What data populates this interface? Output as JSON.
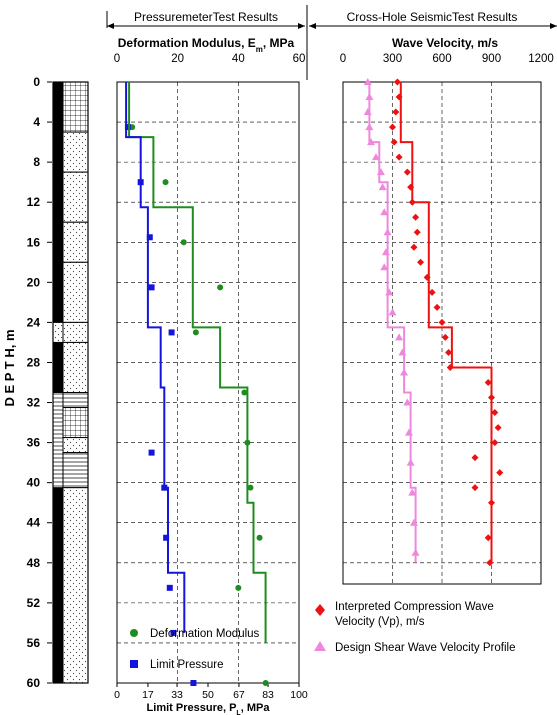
{
  "header": {
    "pressuremeter_banner": "PressuremeterTest Results",
    "seismic_banner": "Cross-Hole SeismicTest Results"
  },
  "chart_data": [
    {
      "type": "scatter",
      "panel": "pressuremeter",
      "title_top": "Deformation Modulus, E",
      "title_top_sub": "m",
      "title_top_unit": ", MPa",
      "title_bottom": "Limit Pressure, P",
      "title_bottom_sub": "L",
      "title_bottom_unit": ", MPa",
      "ylabel": "D E P T H,   m",
      "top_axis": {
        "ticks": [
          "0",
          "20",
          "40",
          "60"
        ],
        "range": [
          0,
          60
        ]
      },
      "bottom_axis": {
        "ticks": [
          "0",
          "17",
          "33",
          "50",
          "67",
          "83",
          "100"
        ],
        "range": [
          0,
          100
        ]
      },
      "y_axis": {
        "ticks": [
          "0",
          "4",
          "8",
          "12",
          "16",
          "20",
          "24",
          "28",
          "32",
          "36",
          "40",
          "44",
          "48",
          "52",
          "56",
          "60"
        ],
        "range": [
          0,
          60
        ],
        "inverted": true
      },
      "grid": true,
      "legend": {
        "position": "bottom-left",
        "entries": [
          "Deformation Modulus",
          "Limit Pressure"
        ]
      },
      "colors": {
        "modulus": "#1e8c1e",
        "pressure": "#1414dc"
      },
      "series": [
        {
          "name": "Deformation Modulus",
          "axis": "top",
          "kind": "points",
          "points": [
            [
              5,
              4.5
            ],
            [
              16,
              10
            ],
            [
              22,
              16
            ],
            [
              34,
              20.5
            ],
            [
              26,
              25
            ],
            [
              42,
              31
            ],
            [
              43,
              36
            ],
            [
              44,
              40.5
            ],
            [
              47,
              45.5
            ],
            [
              40,
              50.5
            ],
            [
              49,
              60
            ]
          ]
        },
        {
          "name": "Limit Pressure",
          "axis": "bottom",
          "kind": "points",
          "points": [
            [
              6,
              4.5
            ],
            [
              13,
              10
            ],
            [
              18,
              15.5
            ],
            [
              19,
              20.5
            ],
            [
              30,
              25
            ],
            [
              19,
              37
            ],
            [
              26,
              40.5
            ],
            [
              27,
              45.5
            ],
            [
              29,
              50.5
            ],
            [
              31,
              55
            ],
            [
              42,
              60
            ]
          ]
        },
        {
          "name": "Deformation Modulus profile",
          "axis": "top",
          "kind": "step",
          "points": [
            [
              4,
              0
            ],
            [
              4,
              5.5
            ],
            [
              12,
              5.5
            ],
            [
              12,
              12.5
            ],
            [
              25,
              12.5
            ],
            [
              25,
              24.5
            ],
            [
              34,
              24.5
            ],
            [
              34,
              30.5
            ],
            [
              43,
              30.5
            ],
            [
              43,
              42
            ],
            [
              45,
              42
            ],
            [
              45,
              49
            ],
            [
              49,
              49
            ],
            [
              49,
              56
            ]
          ]
        },
        {
          "name": "Limit Pressure profile",
          "axis": "bottom",
          "kind": "step",
          "points": [
            [
              5,
              0
            ],
            [
              5,
              5.5
            ],
            [
              13,
              5.5
            ],
            [
              13,
              12.5
            ],
            [
              17,
              12.5
            ],
            [
              17,
              24.5
            ],
            [
              24,
              24.5
            ],
            [
              24,
              30.5
            ],
            [
              26,
              30.5
            ],
            [
              26,
              40.5
            ],
            [
              28,
              40.5
            ],
            [
              28,
              49
            ],
            [
              37,
              49
            ],
            [
              37,
              55
            ]
          ]
        }
      ]
    },
    {
      "type": "scatter",
      "panel": "seismic",
      "title_top": "Wave Velocity, m/s",
      "top_axis": {
        "ticks": [
          "0",
          "300",
          "600",
          "900",
          "1200"
        ],
        "range": [
          0,
          1200
        ]
      },
      "y_axis": {
        "range": [
          0,
          60
        ],
        "inverted": true
      },
      "grid": true,
      "legend": {
        "position": "bottom",
        "entries": [
          "Interpreted Compression Wave Velocity (Vp), m/s",
          "Design Shear Wave Velocity Profile"
        ]
      },
      "legend_lines": {
        "vp_line1": "Interpreted Compression Wave",
        "vp_line2": "Velocity (Vp), m/s",
        "vs_line1": "Design Shear Wave Velocity Profile"
      },
      "colors": {
        "vp": "#ee1111",
        "vs": "#ee88dd"
      },
      "series": [
        {
          "name": "Interpreted Compression Wave Velocity (Vp), m/s",
          "kind": "points",
          "points": [
            [
              330,
              0
            ],
            [
              340,
              1.5
            ],
            [
              320,
              3
            ],
            [
              300,
              4.5
            ],
            [
              310,
              6
            ],
            [
              340,
              7.5
            ],
            [
              390,
              9
            ],
            [
              410,
              10.5
            ],
            [
              420,
              12
            ],
            [
              440,
              13.5
            ],
            [
              450,
              15
            ],
            [
              430,
              16.5
            ],
            [
              470,
              18
            ],
            [
              510,
              19.5
            ],
            [
              540,
              21
            ],
            [
              570,
              22.5
            ],
            [
              600,
              24
            ],
            [
              620,
              25.5
            ],
            [
              640,
              27
            ],
            [
              650,
              28.5
            ],
            [
              880,
              30
            ],
            [
              900,
              31.5
            ],
            [
              920,
              33
            ],
            [
              940,
              34.5
            ],
            [
              920,
              36
            ],
            [
              800,
              37.5
            ],
            [
              950,
              39
            ],
            [
              800,
              40.5
            ],
            [
              900,
              42
            ],
            [
              880,
              45.5
            ],
            [
              890,
              48
            ]
          ]
        },
        {
          "name": "Design Shear Wave Velocity Profile",
          "kind": "points",
          "points": [
            [
              150,
              0
            ],
            [
              160,
              1.5
            ],
            [
              150,
              3
            ],
            [
              160,
              4.5
            ],
            [
              170,
              6
            ],
            [
              200,
              7.5
            ],
            [
              230,
              9
            ],
            [
              240,
              10.5
            ],
            [
              250,
              13
            ],
            [
              270,
              15
            ],
            [
              260,
              17
            ],
            [
              250,
              18.5
            ],
            [
              280,
              21
            ],
            [
              300,
              23
            ],
            [
              340,
              25.5
            ],
            [
              360,
              27
            ],
            [
              370,
              29
            ],
            [
              390,
              32
            ],
            [
              400,
              35
            ],
            [
              410,
              38
            ],
            [
              420,
              41
            ],
            [
              430,
              44
            ],
            [
              440,
              47
            ]
          ]
        },
        {
          "name": "Vp profile",
          "kind": "step",
          "points": [
            [
              350,
              0
            ],
            [
              350,
              6
            ],
            [
              420,
              6
            ],
            [
              420,
              12
            ],
            [
              520,
              12
            ],
            [
              520,
              24.5
            ],
            [
              660,
              24.5
            ],
            [
              660,
              28.5
            ],
            [
              900,
              28.5
            ],
            [
              900,
              48
            ]
          ]
        },
        {
          "name": "Vs profile",
          "kind": "step",
          "points": [
            [
              160,
              0
            ],
            [
              160,
              6
            ],
            [
              220,
              6
            ],
            [
              220,
              10
            ],
            [
              270,
              10
            ],
            [
              270,
              24.5
            ],
            [
              370,
              24.5
            ],
            [
              370,
              31
            ],
            [
              410,
              31
            ],
            [
              410,
              40.5
            ],
            [
              440,
              40.5
            ],
            [
              440,
              48
            ]
          ]
        }
      ]
    }
  ]
}
